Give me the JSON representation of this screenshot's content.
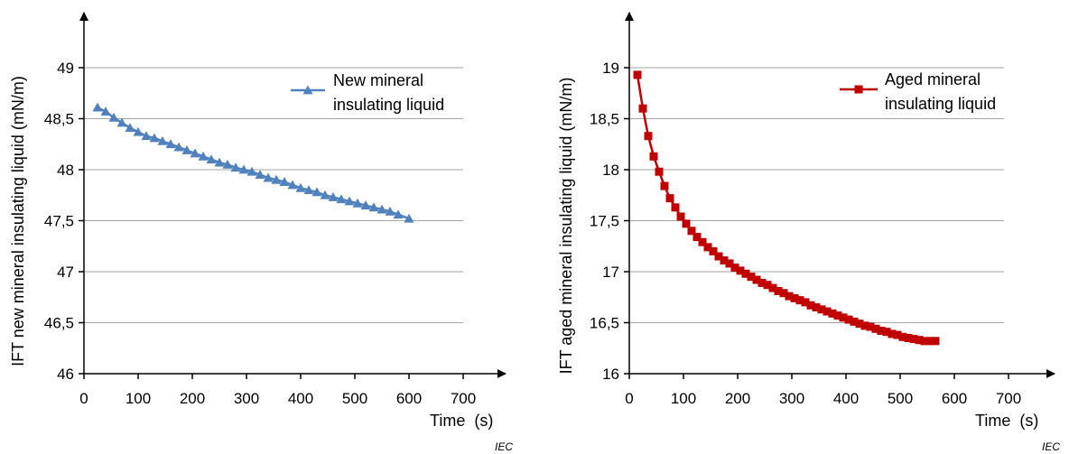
{
  "iec_mark": "IEC",
  "chart_data": [
    {
      "type": "line",
      "title": "",
      "xlabel": "Time  (s)",
      "ylabel": "IFT new mineral insulating liquid (mN/m)",
      "xlim": [
        0,
        700
      ],
      "ylim": [
        46,
        49.5
      ],
      "x_ticks": [
        0,
        100,
        200,
        300,
        400,
        500,
        600,
        700
      ],
      "x_tick_labels": [
        "0",
        "100",
        "200",
        "300",
        "400",
        "500",
        "600",
        "700"
      ],
      "y_ticks": [
        46,
        46.5,
        47,
        47.5,
        48,
        48.5,
        49
      ],
      "y_tick_labels": [
        "46",
        "46,5",
        "47",
        "47,5",
        "48",
        "48,5",
        "49"
      ],
      "grid": "horizontal",
      "legend": "top-right",
      "series": [
        {
          "name": "New mineral insulating liquid",
          "legend_lines": [
            "New mineral",
            "insulating liquid"
          ],
          "color": "#4F81BD",
          "marker": "triangle",
          "points": [
            [
              25,
              48.61
            ],
            [
              40,
              48.57
            ],
            [
              55,
              48.51
            ],
            [
              70,
              48.46
            ],
            [
              85,
              48.41
            ],
            [
              100,
              48.37
            ],
            [
              115,
              48.33
            ],
            [
              130,
              48.31
            ],
            [
              145,
              48.28
            ],
            [
              160,
              48.25
            ],
            [
              175,
              48.22
            ],
            [
              190,
              48.19
            ],
            [
              205,
              48.16
            ],
            [
              220,
              48.13
            ],
            [
              235,
              48.1
            ],
            [
              250,
              48.07
            ],
            [
              265,
              48.05
            ],
            [
              280,
              48.02
            ],
            [
              295,
              48.0
            ],
            [
              310,
              47.98
            ],
            [
              325,
              47.95
            ],
            [
              340,
              47.92
            ],
            [
              355,
              47.9
            ],
            [
              370,
              47.88
            ],
            [
              385,
              47.85
            ],
            [
              400,
              47.82
            ],
            [
              415,
              47.8
            ],
            [
              430,
              47.78
            ],
            [
              445,
              47.75
            ],
            [
              460,
              47.73
            ],
            [
              475,
              47.71
            ],
            [
              490,
              47.69
            ],
            [
              505,
              47.67
            ],
            [
              520,
              47.65
            ],
            [
              535,
              47.63
            ],
            [
              550,
              47.61
            ],
            [
              565,
              47.59
            ],
            [
              580,
              47.56
            ],
            [
              600,
              47.52
            ]
          ]
        }
      ]
    },
    {
      "type": "line",
      "title": "",
      "xlabel": "Time  (s)",
      "ylabel": "IFT aged mineral insulating liquid (mN/m)",
      "xlim": [
        0,
        700
      ],
      "ylim": [
        16,
        19.5
      ],
      "x_ticks": [
        0,
        100,
        200,
        300,
        400,
        500,
        600,
        700
      ],
      "x_tick_labels": [
        "0",
        "100",
        "200",
        "300",
        "400",
        "500",
        "600",
        "700"
      ],
      "y_ticks": [
        16,
        16.5,
        17,
        17.5,
        18,
        18.5,
        19
      ],
      "y_tick_labels": [
        "16",
        "16,5",
        "17",
        "17,5",
        "18",
        "18,5",
        "19"
      ],
      "grid": "horizontal",
      "legend": "top-right",
      "series": [
        {
          "name": "Aged mineral insulating liquid",
          "legend_lines": [
            "Aged mineral",
            "insulating liquid"
          ],
          "color": "#C00000",
          "marker": "square",
          "points": [
            [
              15,
              18.93
            ],
            [
              25,
              18.6
            ],
            [
              35,
              18.33
            ],
            [
              45,
              18.13
            ],
            [
              55,
              17.98
            ],
            [
              65,
              17.84
            ],
            [
              75,
              17.72
            ],
            [
              85,
              17.63
            ],
            [
              95,
              17.54
            ],
            [
              105,
              17.47
            ],
            [
              115,
              17.4
            ],
            [
              125,
              17.34
            ],
            [
              135,
              17.29
            ],
            [
              145,
              17.24
            ],
            [
              155,
              17.2
            ],
            [
              165,
              17.15
            ],
            [
              175,
              17.11
            ],
            [
              185,
              17.08
            ],
            [
              195,
              17.04
            ],
            [
              205,
              17.01
            ],
            [
              215,
              16.98
            ],
            [
              225,
              16.95
            ],
            [
              235,
              16.92
            ],
            [
              245,
              16.89
            ],
            [
              255,
              16.87
            ],
            [
              265,
              16.84
            ],
            [
              275,
              16.81
            ],
            [
              285,
              16.79
            ],
            [
              295,
              16.76
            ],
            [
              305,
              16.74
            ],
            [
              315,
              16.72
            ],
            [
              325,
              16.7
            ],
            [
              335,
              16.67
            ],
            [
              345,
              16.65
            ],
            [
              355,
              16.63
            ],
            [
              365,
              16.61
            ],
            [
              375,
              16.59
            ],
            [
              385,
              16.57
            ],
            [
              395,
              16.55
            ],
            [
              405,
              16.53
            ],
            [
              415,
              16.51
            ],
            [
              425,
              16.49
            ],
            [
              435,
              16.47
            ],
            [
              445,
              16.46
            ],
            [
              455,
              16.44
            ],
            [
              465,
              16.42
            ],
            [
              475,
              16.41
            ],
            [
              485,
              16.39
            ],
            [
              495,
              16.38
            ],
            [
              505,
              16.36
            ],
            [
              515,
              16.35
            ],
            [
              525,
              16.34
            ],
            [
              535,
              16.33
            ],
            [
              545,
              16.32
            ],
            [
              555,
              16.32
            ],
            [
              565,
              16.32
            ]
          ]
        }
      ]
    }
  ]
}
